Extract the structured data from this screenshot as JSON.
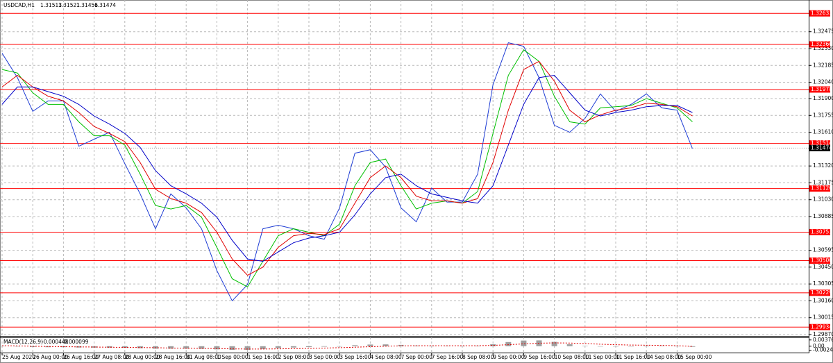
{
  "chart_data": [
    {
      "type": "line",
      "symbol": "USDCAD,H1",
      "ohlc": [
        1.31513,
        1.31521,
        1.31456,
        1.31474
      ],
      "last_price": 1.31474,
      "categories": [
        "25 Aug 2020",
        null,
        "26 Aug 00:00",
        null,
        "26 Aug 16:00",
        null,
        "27 Aug 08:00",
        null,
        "28 Aug 00:00",
        null,
        "28 Aug 16:00",
        null,
        "31 Aug 08:00",
        null,
        "1 Sep 00:00",
        null,
        "1 Sep 16:00",
        null,
        "2 Sep 08:00",
        null,
        "3 Sep 00:00",
        null,
        "3 Sep 16:00",
        null,
        "4 Sep 08:00",
        null,
        "7 Sep 00:00",
        null,
        "7 Sep 16:00",
        null,
        "8 Sep 08:00",
        null,
        "9 Sep 00:00",
        null,
        "9 Sep 16:00",
        null,
        "10 Sep 08:00",
        null,
        "11 Sep 00:00",
        null,
        "11 Sep 16:00",
        null,
        "14 Sep 08:00",
        null,
        "15 Sep 00:00",
        null
      ],
      "series": [
        {
          "color": "#1e3cd4",
          "values": [
            1.3229,
            1.3208,
            1.3179,
            1.3188,
            1.3188,
            1.3149,
            1.3155,
            1.3161,
            1.3134,
            1.3108,
            1.3078,
            1.3108,
            1.3096,
            1.3078,
            1.3042,
            1.3016,
            1.303,
            1.3078,
            1.3081,
            1.3078,
            1.3072,
            1.3069,
            1.3096,
            1.3143,
            1.3146,
            1.3131,
            1.3096,
            1.3084,
            1.3113,
            1.3101,
            1.3101,
            1.3125,
            1.3202,
            1.3238,
            1.3235,
            1.3208,
            1.3167,
            1.3161,
            1.3173,
            1.3194,
            1.3179,
            1.3185,
            1.3194,
            1.3182,
            1.318,
            1.3147
          ]
        },
        {
          "color": "#00c000",
          "values": [
            1.3215,
            1.3212,
            1.3195,
            1.3185,
            1.3185,
            1.317,
            1.3158,
            1.3158,
            1.315,
            1.3125,
            1.3098,
            1.3095,
            1.3098,
            1.3088,
            1.3062,
            1.3035,
            1.3028,
            1.305,
            1.3072,
            1.3078,
            1.3075,
            1.3072,
            1.3082,
            1.3115,
            1.3135,
            1.3138,
            1.3115,
            1.3095,
            1.31,
            1.3102,
            1.31,
            1.311,
            1.316,
            1.321,
            1.3232,
            1.3222,
            1.3192,
            1.317,
            1.3168,
            1.3182,
            1.3183,
            1.3184,
            1.319,
            1.3186,
            1.3182,
            1.317
          ]
        },
        {
          "color": "#e00000",
          "values": [
            1.32,
            1.321,
            1.32,
            1.3192,
            1.3188,
            1.3178,
            1.3166,
            1.316,
            1.3153,
            1.3135,
            1.3112,
            1.3104,
            1.31,
            1.3092,
            1.3075,
            1.3052,
            1.3038,
            1.3045,
            1.3062,
            1.3072,
            1.3074,
            1.3073,
            1.3078,
            1.31,
            1.3122,
            1.3132,
            1.3122,
            1.3106,
            1.3102,
            1.3102,
            1.31,
            1.3104,
            1.3135,
            1.318,
            1.3215,
            1.3222,
            1.3205,
            1.318,
            1.317,
            1.3176,
            1.318,
            1.3182,
            1.3186,
            1.3185,
            1.3183,
            1.3175
          ]
        },
        {
          "color": "#0000c8",
          "values": [
            1.3185,
            1.32,
            1.32,
            1.3196,
            1.3192,
            1.3185,
            1.3175,
            1.3168,
            1.316,
            1.3148,
            1.3128,
            1.3115,
            1.3108,
            1.31,
            1.3088,
            1.3068,
            1.3052,
            1.305,
            1.3058,
            1.3066,
            1.307,
            1.3072,
            1.3075,
            1.309,
            1.3108,
            1.3122,
            1.3125,
            1.3115,
            1.3108,
            1.3105,
            1.3102,
            1.31,
            1.3115,
            1.315,
            1.3185,
            1.3208,
            1.321,
            1.3195,
            1.318,
            1.3175,
            1.3178,
            1.318,
            1.3183,
            1.3184,
            1.3184,
            1.3178
          ]
        }
      ],
      "levels": [
        1.32633,
        1.32366,
        1.31978,
        1.31514,
        1.31126,
        1.30751,
        1.30506,
        1.30229,
        1.29934
      ],
      "level_color": "#ff0000",
      "ylim": [
        1.29858,
        1.32736
      ],
      "yticks": [
        1.32475,
        {
          "value": 1.3233,
          "label": "1.32330"
        },
        1.32185,
        {
          "value": 1.3204,
          "label": "1.32040"
        },
        {
          "value": 1.319,
          "label": "1.31900"
        },
        1.31755,
        {
          "value": 1.3161,
          "label": "1.31610"
        },
        {
          "value": 1.3132,
          "label": "1.31320"
        },
        1.31175,
        {
          "value": 1.3103,
          "label": "1.31030"
        },
        1.30885,
        1.30595,
        {
          "value": 1.3045,
          "label": "1.30450"
        },
        1.30305,
        {
          "value": 1.3016,
          "label": "1.30160"
        },
        1.30015,
        {
          "value": 1.2987,
          "label": "1.29870"
        }
      ],
      "grid": true
    },
    {
      "type": "bar",
      "label": "MACD(12,26,9)",
      "current": [
        -0.000448,
        -9.9e-05
      ],
      "color": "#a0a0a0",
      "values": [
        0.0002,
        -0.0002,
        -0.0005,
        -0.0006,
        -0.0006,
        -0.0008,
        -0.0009,
        -0.0009,
        -0.001,
        -0.0012,
        -0.0015,
        -0.0015,
        -0.0015,
        -0.0016,
        -0.0019,
        -0.0022,
        -0.0022,
        -0.0017,
        -0.0012,
        -0.0008,
        -0.0005,
        -0.0003,
        0.0,
        0.0006,
        0.001,
        0.0011,
        0.0008,
        0.0004,
        0.0003,
        0.0002,
        0.0001,
        0.0003,
        0.0012,
        0.0025,
        0.0034,
        0.0035,
        0.0026,
        0.0012,
        0.0002,
        -0.0002,
        -0.0002,
        0.0,
        0.0003,
        0.0002,
        0.0001,
        -0.0004
      ],
      "signal": {
        "color": "#e00000",
        "values": [
          0.0003,
          0.0002,
          0.0,
          -0.0002,
          -0.0003,
          -0.0004,
          -0.0005,
          -0.0006,
          -0.0007,
          -0.0008,
          -0.0009,
          -0.0011,
          -0.0012,
          -0.0013,
          -0.0014,
          -0.0016,
          -0.0017,
          -0.0017,
          -0.0016,
          -0.0015,
          -0.0013,
          -0.0011,
          -0.0009,
          -0.0006,
          -0.0003,
          0.0,
          0.0002,
          0.0003,
          0.0003,
          0.0003,
          0.0003,
          0.0003,
          0.0005,
          0.0009,
          0.0014,
          0.0018,
          0.002,
          0.0019,
          0.0016,
          0.0012,
          0.0009,
          0.0007,
          0.0006,
          0.0005,
          0.0003,
          -0.0001
        ]
      },
      "ylim": [
        -0.003,
        0.0045
      ],
      "yticks": [
        0.00376,
        {
          "value": 0,
          "label": "0.00"
        },
        -0.00244
      ]
    }
  ]
}
